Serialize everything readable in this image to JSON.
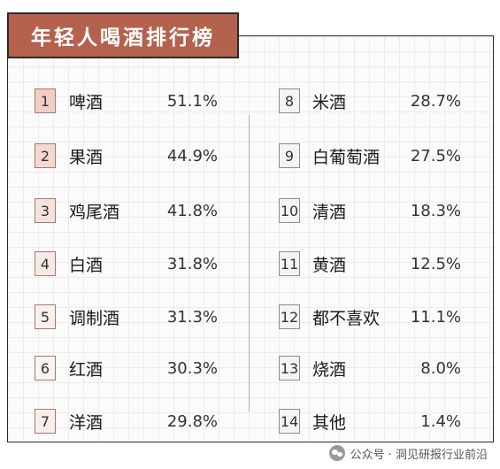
{
  "title": "年轻人喝酒排行榜",
  "rank_bg_colors": [
    "#f2cfc5",
    "#f3d9d1",
    "#f5e2dc",
    "#f7eae5",
    "#f9f0ed",
    "#faf4f2",
    "#f8efeb"
  ],
  "right_rank_bg": "#f4f4f4",
  "left_items": [
    {
      "rank": "1",
      "name": "啤酒",
      "percent": "51.1%"
    },
    {
      "rank": "2",
      "name": "果酒",
      "percent": "44.9%"
    },
    {
      "rank": "3",
      "name": "鸡尾酒",
      "percent": "41.8%"
    },
    {
      "rank": "4",
      "name": "白酒",
      "percent": "31.8%"
    },
    {
      "rank": "5",
      "name": "调制酒",
      "percent": "31.3%"
    },
    {
      "rank": "6",
      "name": "红酒",
      "percent": "30.3%"
    },
    {
      "rank": "7",
      "name": "洋酒",
      "percent": "29.8%"
    }
  ],
  "right_items": [
    {
      "rank": "8",
      "name": "米酒",
      "percent": "28.7%"
    },
    {
      "rank": "9",
      "name": "白葡萄酒",
      "percent": "27.5%"
    },
    {
      "rank": "10",
      "name": "清酒",
      "percent": "18.3%"
    },
    {
      "rank": "11",
      "name": "黄酒",
      "percent": "12.5%"
    },
    {
      "rank": "12",
      "name": "都不喜欢",
      "percent": "11.1%"
    },
    {
      "rank": "13",
      "name": "烧酒",
      "percent": "8.0%"
    },
    {
      "rank": "14",
      "name": "其他",
      "percent": "1.4%"
    }
  ],
  "watermark": {
    "text": "公众号 · 洞见研报行业前沿",
    "icon": "wechat-icon"
  }
}
